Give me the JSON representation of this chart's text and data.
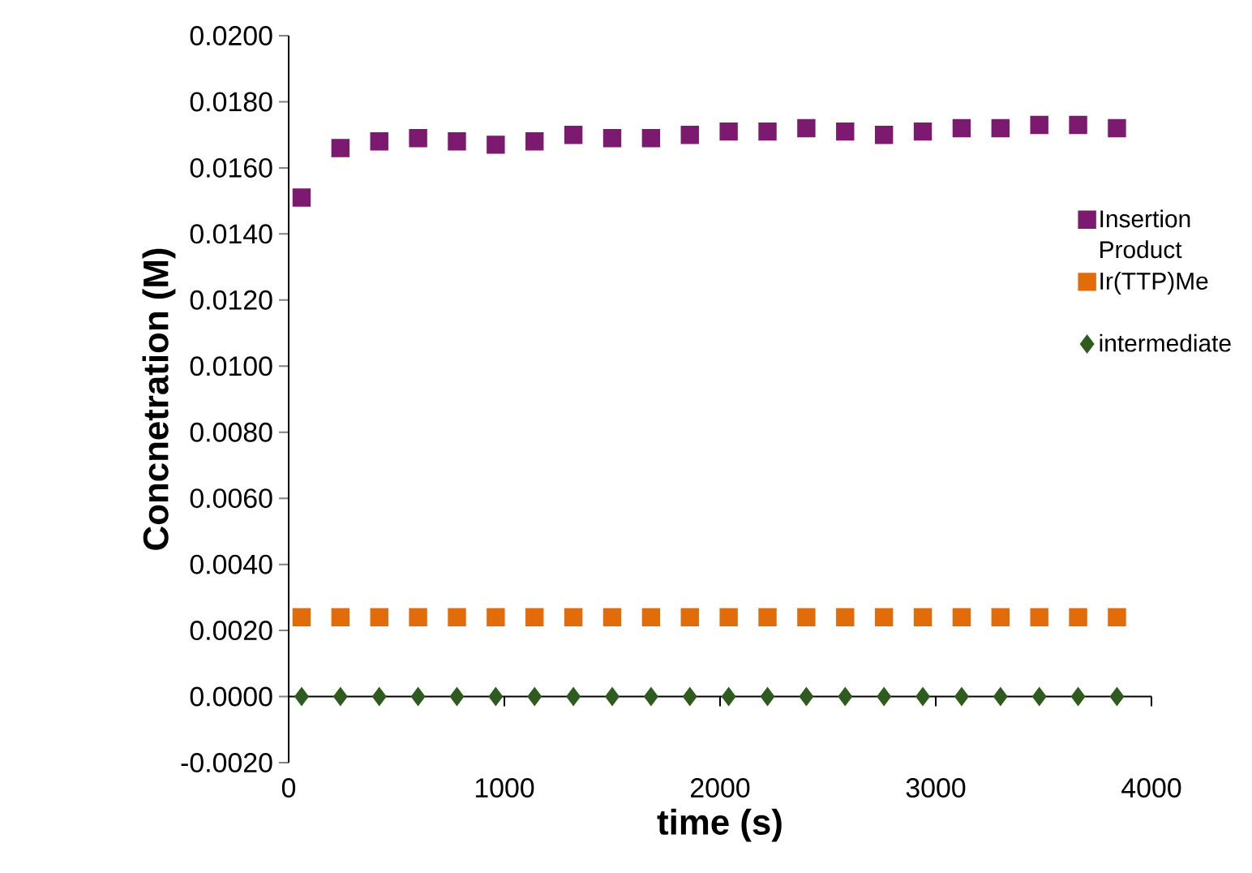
{
  "chart_data": {
    "type": "scatter",
    "xlabel": "time (s)",
    "ylabel": "Concnetration (M)",
    "xlim": [
      0,
      4000
    ],
    "xticks": [
      0,
      1000,
      2000,
      3000,
      4000
    ],
    "ylim": [
      -0.002,
      0.02
    ],
    "yticks": [
      {
        "value": -0.002,
        "label": "-0.0020"
      },
      {
        "value": 0,
        "label": "0.0000"
      },
      {
        "value": 0.002,
        "label": "0.0020"
      },
      {
        "value": 0.004,
        "label": "0.0040"
      },
      {
        "value": 0.006,
        "label": "0.0060"
      },
      {
        "value": 0.008,
        "label": "0.0080"
      },
      {
        "value": 0.01,
        "label": "0.0100"
      },
      {
        "value": 0.012,
        "label": "0.0120"
      },
      {
        "value": 0.014,
        "label": "0.0140"
      },
      {
        "value": 0.016,
        "label": "0.0160"
      },
      {
        "value": 0.018,
        "label": "0.0180"
      },
      {
        "value": 0.02,
        "label": "0.0200"
      }
    ],
    "x": [
      60,
      240,
      420,
      600,
      780,
      960,
      1140,
      1320,
      1500,
      1680,
      1860,
      2040,
      2220,
      2400,
      2580,
      2760,
      2940,
      3120,
      3300,
      3480,
      3660,
      3840
    ],
    "legend": "right",
    "series": [
      {
        "name": "Insertion Product",
        "color": "#7b1a6e",
        "marker": "square",
        "values": [
          0.0151,
          0.0166,
          0.0168,
          0.0169,
          0.0168,
          0.0167,
          0.0168,
          0.017,
          0.0169,
          0.0169,
          0.017,
          0.0171,
          0.0171,
          0.0172,
          0.0171,
          0.017,
          0.0171,
          0.0172,
          0.0172,
          0.0173,
          0.0173,
          0.0172
        ]
      },
      {
        "name": "Ir(TTP)Me",
        "color": "#e36c0a",
        "marker": "square",
        "values": [
          0.0024,
          0.0024,
          0.0024,
          0.0024,
          0.0024,
          0.0024,
          0.0024,
          0.0024,
          0.0024,
          0.0024,
          0.0024,
          0.0024,
          0.0024,
          0.0024,
          0.0024,
          0.0024,
          0.0024,
          0.0024,
          0.0024,
          0.0024,
          0.0024,
          0.0024
        ]
      },
      {
        "name": "intermediate",
        "color": "#2e5b1e",
        "marker": "diamond",
        "values": [
          0,
          0,
          0,
          0,
          0,
          0,
          0,
          0,
          0,
          0,
          0,
          0,
          0,
          0,
          0,
          0,
          0,
          0,
          0,
          0,
          0,
          0
        ]
      }
    ]
  }
}
